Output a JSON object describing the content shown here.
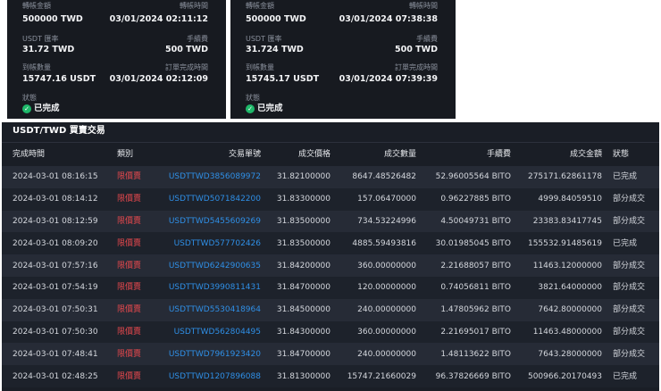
{
  "cards": [
    {
      "fields": [
        {
          "label": "轉帳金額",
          "value": "500000 TWD"
        },
        {
          "label": "轉帳時間",
          "value": "03/01/2024 02:11:12"
        },
        {
          "label": "USDT 匯率",
          "value": "31.72 TWD"
        },
        {
          "label": "手續費",
          "value": "500 TWD"
        },
        {
          "label": "到帳數量",
          "value": "15747.16 USDT"
        },
        {
          "label": "訂單完成時間",
          "value": "03/01/2024 02:12:09"
        }
      ],
      "status_label": "狀態",
      "status": "已完成"
    },
    {
      "fields": [
        {
          "label": "轉帳金額",
          "value": "500000 TWD"
        },
        {
          "label": "轉帳時間",
          "value": "03/01/2024 07:38:38"
        },
        {
          "label": "USDT 匯率",
          "value": "31.724 TWD"
        },
        {
          "label": "手續費",
          "value": "500 TWD"
        },
        {
          "label": "到帳數量",
          "value": "15745.17 USDT"
        },
        {
          "label": "訂單完成時間",
          "value": "03/01/2024 07:39:39"
        }
      ],
      "status_label": "狀態",
      "status": "已完成"
    }
  ],
  "table": {
    "title": "USDT/TWD 買賣交易",
    "headers": [
      "完成時間",
      "類別",
      "交易單號",
      "成交價格",
      "成交數量",
      "手續費",
      "成交金額",
      "狀態"
    ],
    "rows": [
      [
        "2024-03-01 08:16:15",
        "限價賣",
        "USDTTWD3856089972",
        "31.82100000",
        "8647.48526482",
        "52.96005564 BITO",
        "275171.62861178",
        "已完成"
      ],
      [
        "2024-03-01 08:14:12",
        "限價賣",
        "USDTTWD5071842200",
        "31.83300000",
        "157.06470000",
        "0.96227885 BITO",
        "4999.84059510",
        "部分成交"
      ],
      [
        "2024-03-01 08:12:59",
        "限價賣",
        "USDTTWD5455609269",
        "31.83500000",
        "734.53224996",
        "4.50049731 BITO",
        "23383.83417745",
        "部分成交"
      ],
      [
        "2024-03-01 08:09:20",
        "限價賣",
        "USDTTWD577702426",
        "31.83500000",
        "4885.59493816",
        "30.01985045 BITO",
        "155532.91485619",
        "已完成"
      ],
      [
        "2024-03-01 07:57:16",
        "限價賣",
        "USDTTWD6242900635",
        "31.84200000",
        "360.00000000",
        "2.21688057 BITO",
        "11463.12000000",
        "部分成交"
      ],
      [
        "2024-03-01 07:54:19",
        "限價賣",
        "USDTTWD3990811431",
        "31.84700000",
        "120.00000000",
        "0.74056811 BITO",
        "3821.64000000",
        "部分成交"
      ],
      [
        "2024-03-01 07:50:31",
        "限價賣",
        "USDTTWD5530418964",
        "31.84500000",
        "240.00000000",
        "1.47805962 BITO",
        "7642.80000000",
        "部分成交"
      ],
      [
        "2024-03-01 07:50:30",
        "限價賣",
        "USDTTWD562804495",
        "31.84300000",
        "360.00000000",
        "2.21695017 BITO",
        "11463.48000000",
        "部分成交"
      ],
      [
        "2024-03-01 07:48:41",
        "限價賣",
        "USDTTWD7961923420",
        "31.84700000",
        "240.00000000",
        "1.48113622 BITO",
        "7643.28000000",
        "部分成交"
      ],
      [
        "2024-03-01 02:48:25",
        "限價賣",
        "USDTTWD1207896088",
        "31.81300000",
        "15747.21660029",
        "96.37826669 BITO",
        "500966.20170493",
        "已完成"
      ]
    ]
  }
}
